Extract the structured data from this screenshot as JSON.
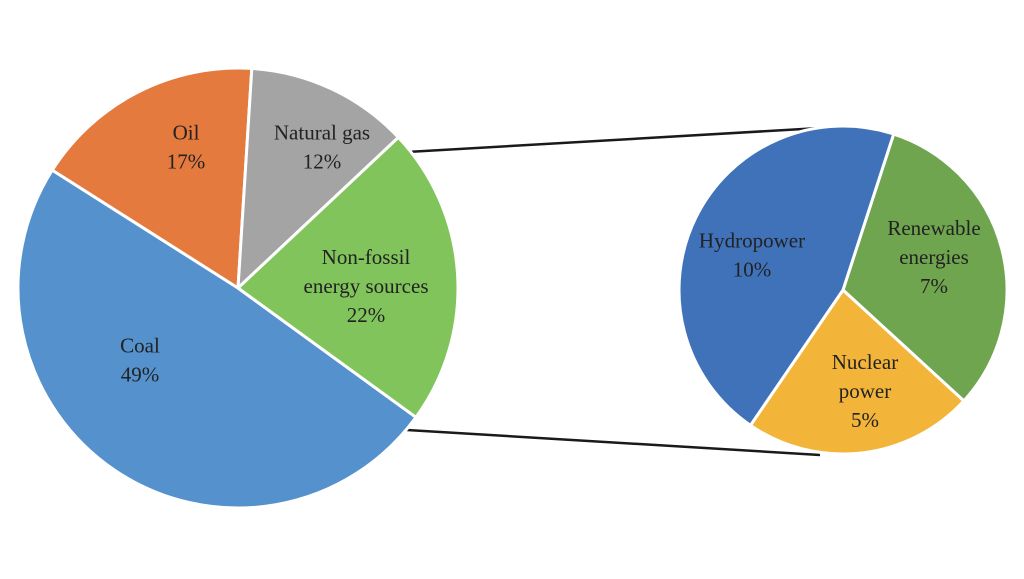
{
  "chart_data": [
    {
      "type": "pie",
      "name": "energy-mix",
      "slices": [
        {
          "label": [
            "Coal"
          ],
          "pct_text": "49%",
          "value": 49,
          "color": "#5591CD"
        },
        {
          "label": [
            "Oil"
          ],
          "pct_text": "17%",
          "value": 17,
          "color": "#E47A3E"
        },
        {
          "label": [
            "Natural gas"
          ],
          "pct_text": "12%",
          "value": 12,
          "color": "#A4A4A4"
        },
        {
          "label": [
            "Non-fossil",
            "energy sources"
          ],
          "pct_text": "22%",
          "value": 22,
          "color": "#82C45C"
        }
      ]
    },
    {
      "type": "pie",
      "name": "non-fossil-breakdown",
      "slices": [
        {
          "label": [
            "Renewable",
            "energies"
          ],
          "pct_text": "7%",
          "value": 7,
          "color": "#6FA54E"
        },
        {
          "label": [
            "Nuclear",
            "power"
          ],
          "pct_text": "5%",
          "value": 5,
          "color": "#F2B53A"
        },
        {
          "label": [
            "Hydropower"
          ],
          "pct_text": "10%",
          "value": 10,
          "color": "#3F72B9"
        }
      ]
    }
  ]
}
